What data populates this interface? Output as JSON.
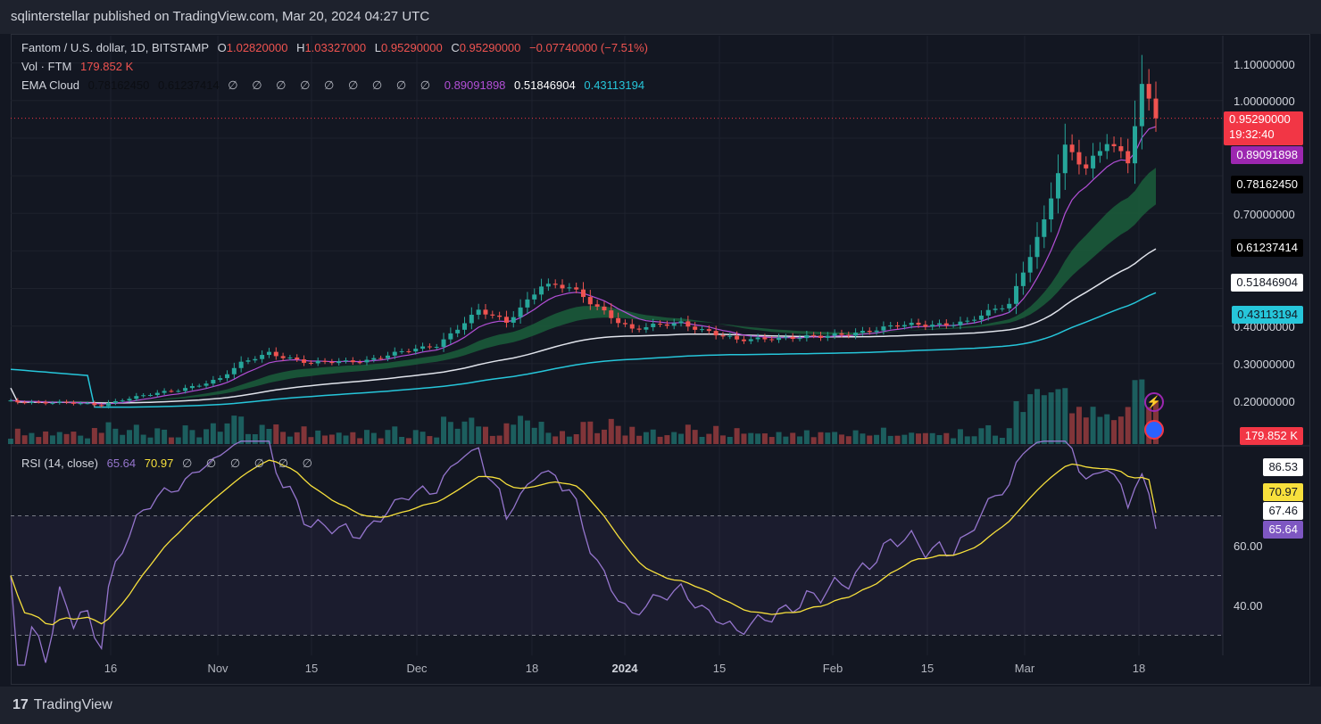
{
  "header": {
    "published": "sqlinterstellar published on TradingView.com, Mar 20, 2024 04:27 UTC"
  },
  "legend": {
    "symbol": "Fantom / U.S. dollar, 1D, BITSTAMP",
    "o_label": "O",
    "o": "1.02820000",
    "h_label": "H",
    "h": "1.03327000",
    "l_label": "L",
    "l": "0.95290000",
    "c_label": "C",
    "c": "0.95290000",
    "change": "−0.07740000 (−7.51%)",
    "vol_label": "Vol · FTM",
    "vol": "179.852 K",
    "ema_label": "EMA Cloud",
    "ema_vals": [
      "0.78162450",
      "0.61237414"
    ],
    "ema_nulls": "∅ ∅ ∅ ∅ ∅ ∅ ∅ ∅ ∅",
    "ema_c1": "0.89091898",
    "ema_c2": "0.51846904",
    "ema_c3": "0.43113194",
    "rsi_label": "RSI (14, close)",
    "rsi_val": "65.64",
    "rsi_ma": "70.97",
    "rsi_nulls": "∅ ∅ ∅ ∅ ∅ ∅"
  },
  "price_axis": [
    "1.10000000",
    "1.00000000",
    "0.70000000",
    "0.40000000",
    "0.30000000",
    "0.20000000"
  ],
  "price_pills": {
    "last": "0.95290000",
    "countdown": "19:32:40",
    "ema_fast": "0.89091898",
    "cloud_top": "0.78162450",
    "cloud_bot": "0.61237414",
    "ema_white": "0.51846904",
    "ema_cyan": "0.43113194",
    "volume": "179.852 K"
  },
  "rsi_axis": {
    "l60": "60.00",
    "l40": "40.00"
  },
  "rsi_pills": {
    "p1": "86.53",
    "p2": "70.97",
    "p3": "67.46",
    "p4": "65.64"
  },
  "x_axis": [
    "16",
    "Nov",
    "15",
    "Dec",
    "18",
    "2024",
    "15",
    "Feb",
    "15",
    "Mar",
    "18"
  ],
  "colors": {
    "up": "#26a69a",
    "down": "#ef5350",
    "rsi": "#7e57c2",
    "rsi_ma": "#f7e03c",
    "cyan": "#26c6da",
    "white": "#e0e3eb",
    "purple": "#b24fd6",
    "cloud": "#1b5e3b"
  },
  "footer": {
    "brand": "TradingView",
    "logo": "17"
  },
  "chart_data": {
    "type": "candlestick",
    "title": "Fantom / U.S. dollar, 1D, BITSTAMP",
    "x_range": [
      "2023-10-08",
      "2024-03-20"
    ],
    "y_range": [
      0.17,
      1.1
    ],
    "close_path": [
      [
        "2023-10-08",
        0.2
      ],
      [
        "2023-10-16",
        0.195
      ],
      [
        "2023-10-21",
        0.19
      ],
      [
        "2023-10-24",
        0.205
      ],
      [
        "2023-11-01",
        0.23
      ],
      [
        "2023-11-07",
        0.26
      ],
      [
        "2023-11-10",
        0.3
      ],
      [
        "2023-11-14",
        0.33
      ],
      [
        "2023-11-20",
        0.3
      ],
      [
        "2023-11-28",
        0.31
      ],
      [
        "2023-12-08",
        0.35
      ],
      [
        "2023-12-14",
        0.44
      ],
      [
        "2023-12-18",
        0.41
      ],
      [
        "2023-12-23",
        0.51
      ],
      [
        "2023-12-27",
        0.5
      ],
      [
        "2024-01-01",
        0.44
      ],
      [
        "2024-01-05",
        0.39
      ],
      [
        "2024-01-12",
        0.41
      ],
      [
        "2024-01-20",
        0.36
      ],
      [
        "2024-01-25",
        0.37
      ],
      [
        "2024-02-01",
        0.37
      ],
      [
        "2024-02-12",
        0.4
      ],
      [
        "2024-02-22",
        0.41
      ],
      [
        "2024-02-28",
        0.46
      ],
      [
        "2024-03-04",
        0.68
      ],
      [
        "2024-03-07",
        0.87
      ],
      [
        "2024-03-10",
        0.82
      ],
      [
        "2024-03-13",
        0.9
      ],
      [
        "2024-03-16",
        0.84
      ],
      [
        "2024-03-18",
        1.03
      ],
      [
        "2024-03-20",
        0.9529
      ]
    ],
    "last_ohlc": {
      "open": 1.0282,
      "high": 1.03327,
      "low": 0.9529,
      "close": 0.9529
    },
    "indicators": {
      "ema_fast": 0.89091898,
      "cloud_top": 0.7816245,
      "cloud_bottom": 0.61237414,
      "ema_white": 0.51846904,
      "ema_cyan": 0.43113194
    },
    "volume_last": "179.852 K",
    "rsi": {
      "length": 14,
      "value": 65.64,
      "ma": 70.97,
      "levels": [
        60,
        40
      ],
      "markers": [
        86.53,
        67.46
      ]
    }
  }
}
